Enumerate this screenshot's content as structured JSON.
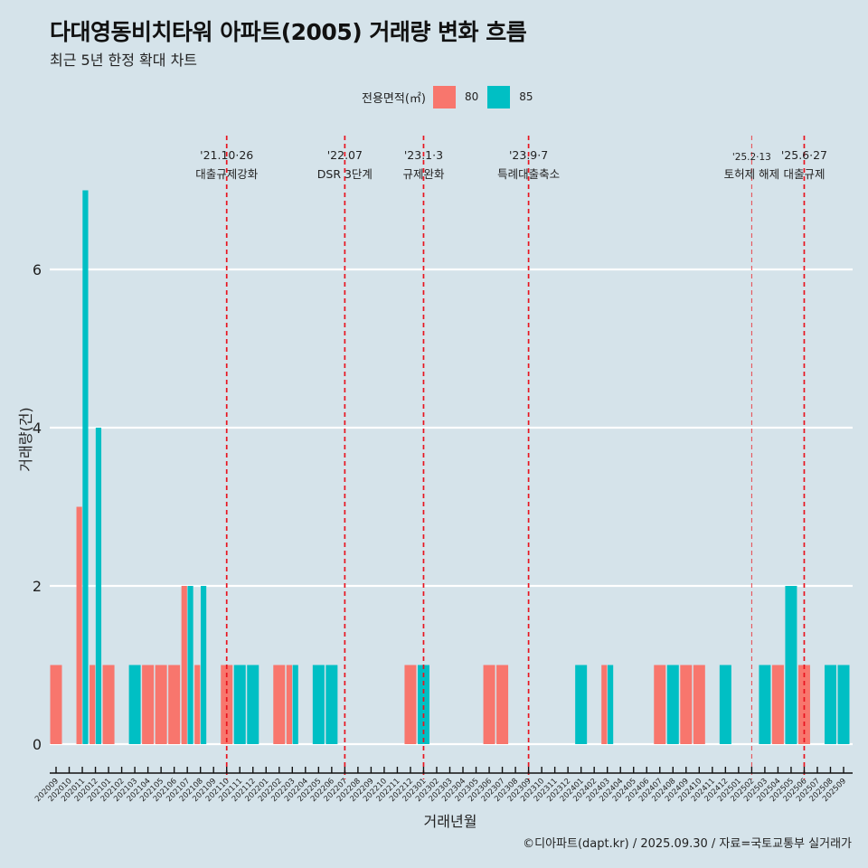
{
  "header": {
    "title": "다대영동비치타워 아파트(2005) 거래량 변화 흐름",
    "subtitle": "최근 5년 한정 확대 차트"
  },
  "legend": {
    "title": "전용면적(㎡)",
    "items": [
      {
        "label": "80",
        "color": "#F8766D"
      },
      {
        "label": "85",
        "color": "#00BFC4"
      }
    ]
  },
  "caption": "©디아파트(dapt.kr) / 2025.09.30 / 자료=국토교통부 실거래가",
  "chart_data": {
    "type": "bar",
    "title": "다대영동비치타워 아파트(2005) 거래량 변화 흐름",
    "subtitle": "최근 5년 한정 확대 차트",
    "xlabel": "거래년월",
    "ylabel": "거래량(건)",
    "ylim": [
      0,
      7
    ],
    "yticks": [
      0,
      2,
      4,
      6
    ],
    "grid": "horizontal",
    "legend_position": "top",
    "categories": [
      "202009",
      "202010",
      "202011",
      "202012",
      "202101",
      "202102",
      "202103",
      "202104",
      "202105",
      "202106",
      "202107",
      "202108",
      "202109",
      "202110",
      "202111",
      "202112",
      "202201",
      "202202",
      "202203",
      "202204",
      "202205",
      "202206",
      "202207",
      "202208",
      "202209",
      "202210",
      "202211",
      "202212",
      "202301",
      "202302",
      "202303",
      "202304",
      "202305",
      "202306",
      "202307",
      "202308",
      "202309",
      "202310",
      "202311",
      "202312",
      "202401",
      "202402",
      "202403",
      "202404",
      "202405",
      "202406",
      "202407",
      "202408",
      "202409",
      "202410",
      "202411",
      "202412",
      "202501",
      "202502",
      "202503",
      "202504",
      "202505",
      "202506",
      "202507",
      "202508",
      "202509"
    ],
    "series": [
      {
        "name": "80",
        "color": "#F8766D",
        "values": [
          1,
          0,
          3,
          1,
          1,
          0,
          0,
          1,
          1,
          1,
          2,
          1,
          0,
          1,
          0,
          0,
          0,
          1,
          1,
          0,
          0,
          0,
          0,
          0,
          0,
          0,
          0,
          1,
          0,
          0,
          0,
          0,
          0,
          1,
          1,
          0,
          0,
          0,
          0,
          0,
          0,
          0,
          1,
          0,
          0,
          0,
          1,
          0,
          1,
          1,
          0,
          0,
          0,
          0,
          0,
          1,
          0,
          1,
          0,
          0,
          0
        ]
      },
      {
        "name": "85",
        "color": "#00BFC4",
        "values": [
          0,
          0,
          7,
          4,
          0,
          0,
          1,
          0,
          0,
          0,
          2,
          2,
          0,
          0,
          1,
          1,
          0,
          0,
          1,
          0,
          1,
          1,
          0,
          0,
          0,
          0,
          0,
          0,
          1,
          0,
          0,
          0,
          0,
          0,
          0,
          0,
          0,
          0,
          0,
          0,
          1,
          0,
          1,
          0,
          0,
          0,
          0,
          1,
          0,
          0,
          0,
          1,
          0,
          0,
          1,
          0,
          2,
          0,
          0,
          1,
          1
        ]
      }
    ],
    "annotations": [
      {
        "x": "202110",
        "date": "'21.10·26",
        "label": "대출규제강화",
        "style": "bold"
      },
      {
        "x": "202207",
        "date": "'22.07",
        "label": "DSR 3단계",
        "style": "bold"
      },
      {
        "x": "202301",
        "date": "'23.1·3",
        "label": "규제완화",
        "style": "bold"
      },
      {
        "x": "202309",
        "date": "'23.9·7",
        "label": "특례대출축소",
        "style": "bold"
      },
      {
        "x": "202502",
        "date": "'25.2·13",
        "label": "토허제 해제",
        "style": "light"
      },
      {
        "x": "202506",
        "date": "'25.6·27",
        "label": "대출규제",
        "style": "bold"
      }
    ]
  }
}
